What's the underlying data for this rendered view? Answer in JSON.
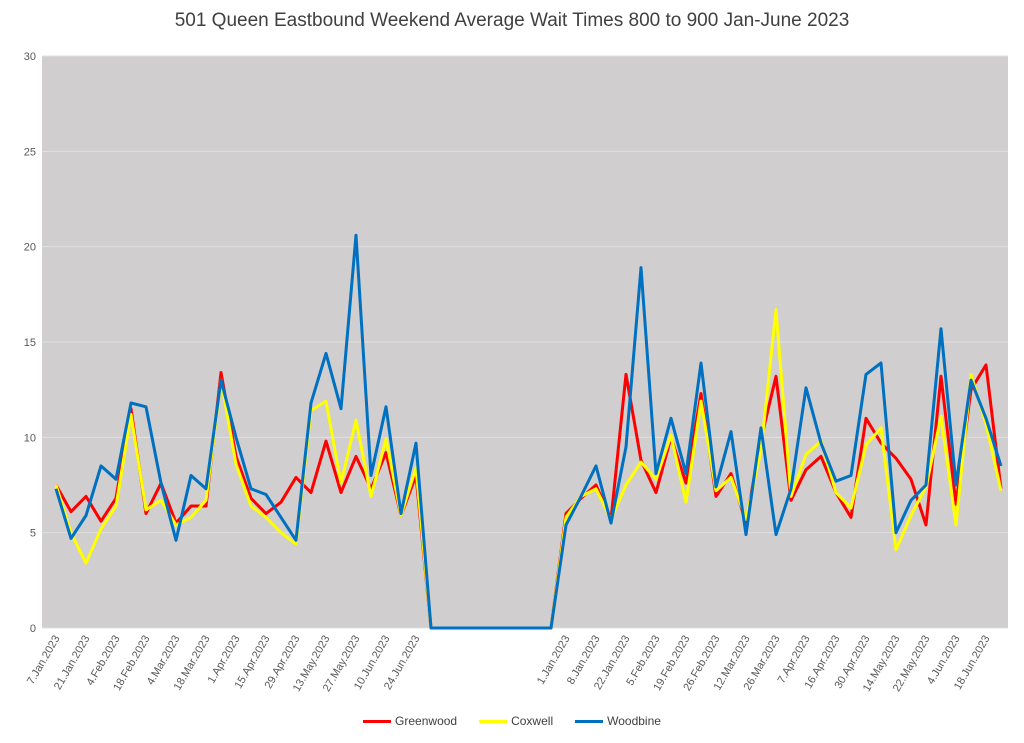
{
  "chart_data": {
    "type": "line",
    "title": "501 Queen Eastbound Weekend Average Wait Times 800 to 900 Jan-June 2023",
    "xlabel": "",
    "ylabel": "",
    "ylim": [
      0,
      30
    ],
    "yticks": [
      0,
      5,
      10,
      15,
      20,
      25,
      30
    ],
    "grid": true,
    "legend_position": "bottom",
    "background_color": "#d0cece",
    "x_tick_labels": [
      "7.Jan.2023",
      "21.Jan.2023",
      "4.Feb.2023",
      "18.Feb.2023",
      "4.Mar.2023",
      "18.Mar.2023",
      "1.Apr.2023",
      "15.Apr.2023",
      "29.Apr.2023",
      "13.May.2023",
      "27.May.2023",
      "10.Jun.2023",
      "24.Jun.2023",
      "1.Jan.2023",
      "8.Jan.2023",
      "22.Jan.2023",
      "5.Feb.2023",
      "19.Feb.2023",
      "26.Feb.2023",
      "12.Mar.2023",
      "26.Mar.2023",
      "7.Apr.2023",
      "16.Apr.2023",
      "30.Apr.2023",
      "14.May.2023",
      "22.May.2023",
      "4.Jun.2023",
      "18.Jun.2023"
    ],
    "series": [
      {
        "name": "Greenwood",
        "color": "#ff0000",
        "values": [
          7.5,
          6.1,
          6.9,
          5.6,
          6.8,
          11.5,
          6.0,
          7.6,
          5.5,
          6.4,
          6.4,
          13.4,
          9.0,
          6.8,
          6.0,
          6.6,
          7.9,
          7.1,
          9.8,
          7.1,
          9.0,
          7.3,
          9.2,
          5.9,
          8.0,
          0,
          0,
          0,
          0,
          0,
          0,
          0,
          0,
          0,
          6.0,
          6.8,
          7.5,
          5.7,
          13.3,
          8.8,
          7.1,
          10.0,
          7.6,
          12.3,
          6.9,
          8.1,
          5.5,
          9.9,
          13.2,
          6.7,
          8.3,
          9.0,
          7.1,
          5.8,
          11.0,
          9.7,
          8.9,
          7.8,
          5.4,
          13.2,
          6.5,
          12.5,
          13.8,
          7.3
        ]
      },
      {
        "name": "Coxwell",
        "color": "#ffff00",
        "values": [
          7.5,
          5.0,
          3.4,
          5.2,
          6.4,
          11.2,
          6.2,
          6.7,
          5.4,
          5.8,
          6.7,
          13.0,
          8.6,
          6.4,
          5.8,
          5.0,
          4.4,
          11.4,
          11.9,
          7.6,
          10.9,
          6.9,
          9.9,
          5.9,
          8.4,
          0,
          0,
          0,
          0,
          0,
          0,
          0,
          0,
          0,
          5.8,
          6.9,
          7.3,
          5.7,
          7.5,
          8.7,
          7.8,
          10.1,
          6.6,
          11.9,
          7.2,
          7.9,
          5.7,
          9.3,
          16.7,
          6.9,
          9.1,
          9.8,
          7.1,
          6.3,
          9.6,
          10.5,
          4.1,
          5.9,
          7.4,
          11.1,
          5.4,
          13.3,
          10.7,
          7.2
        ]
      },
      {
        "name": "Woodbine",
        "color": "#0070c0",
        "values": [
          7.3,
          4.7,
          5.9,
          8.5,
          7.8,
          11.8,
          11.6,
          7.6,
          4.6,
          8.0,
          7.3,
          13.0,
          10.0,
          7.3,
          7.0,
          5.8,
          4.6,
          11.8,
          14.4,
          11.5,
          20.6,
          8.0,
          11.6,
          6.0,
          9.7,
          0,
          0,
          0,
          0,
          0,
          0,
          0,
          0,
          0,
          5.4,
          6.9,
          8.5,
          5.5,
          9.5,
          18.9,
          8.1,
          11.0,
          8.1,
          13.9,
          7.4,
          10.3,
          4.9,
          10.5,
          4.9,
          7.3,
          12.6,
          9.7,
          7.7,
          8.0,
          13.3,
          13.9,
          5.0,
          6.7,
          7.5,
          15.7,
          7.5,
          13.0,
          11.0,
          8.5
        ]
      }
    ]
  }
}
